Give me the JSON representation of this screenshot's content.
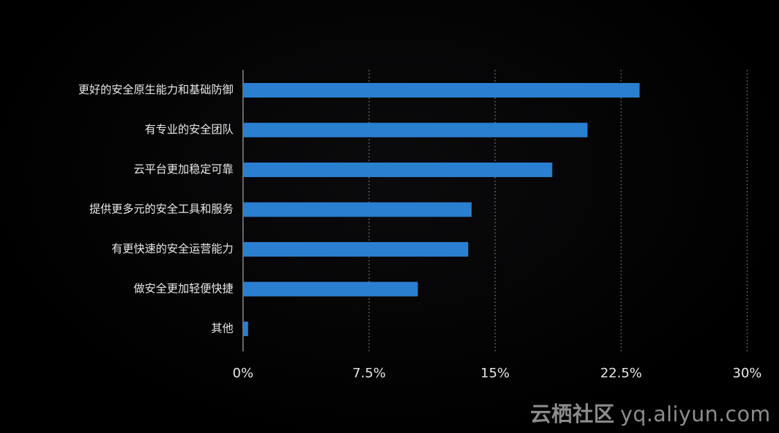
{
  "colors": {
    "background": "#000000",
    "bar": "#2a7fd0",
    "text": "#e8e8e8",
    "grid": "#8a8a8a"
  },
  "chart_data": {
    "type": "bar",
    "orientation": "horizontal",
    "categories": [
      "更好的安全原生能力和基础防御",
      "有专业的安全团队",
      "云平台更加稳定可靠",
      "提供更多元的安全工具和服务",
      "有更快速的安全运营能力",
      "做安全更加轻便快捷",
      "其他"
    ],
    "values": [
      23.6,
      20.5,
      18.4,
      13.6,
      13.4,
      10.4,
      0.3
    ],
    "unit": "%",
    "xlim": [
      0,
      30
    ],
    "x_ticks": [
      0,
      7.5,
      15,
      22.5,
      30
    ],
    "x_tick_labels": [
      "0%",
      "7.5%",
      "15%",
      "22.5%",
      "30%"
    ],
    "grid": "vertical dashed",
    "legend": "none",
    "title": "",
    "xlabel": "",
    "ylabel": ""
  },
  "watermark": {
    "brand": "云栖社区",
    "url": "yq.aliyun.com"
  }
}
